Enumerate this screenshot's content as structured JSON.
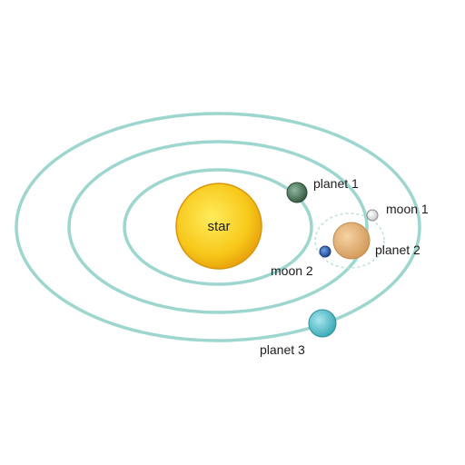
{
  "labels": {
    "star": "star",
    "planet1": "planet 1",
    "planet2": "planet 2",
    "planet3": "planet 3",
    "moon1": "moon 1",
    "moon2": "moon 2"
  },
  "colors": {
    "orbit": "#9dd6cf",
    "star": "#f7c81a",
    "planet1": "#4f7f5c",
    "planet2": "#e3b47a",
    "planet3": "#5fc4cf",
    "moon1": "#eeeeee",
    "moon2": "#2f5fae"
  }
}
